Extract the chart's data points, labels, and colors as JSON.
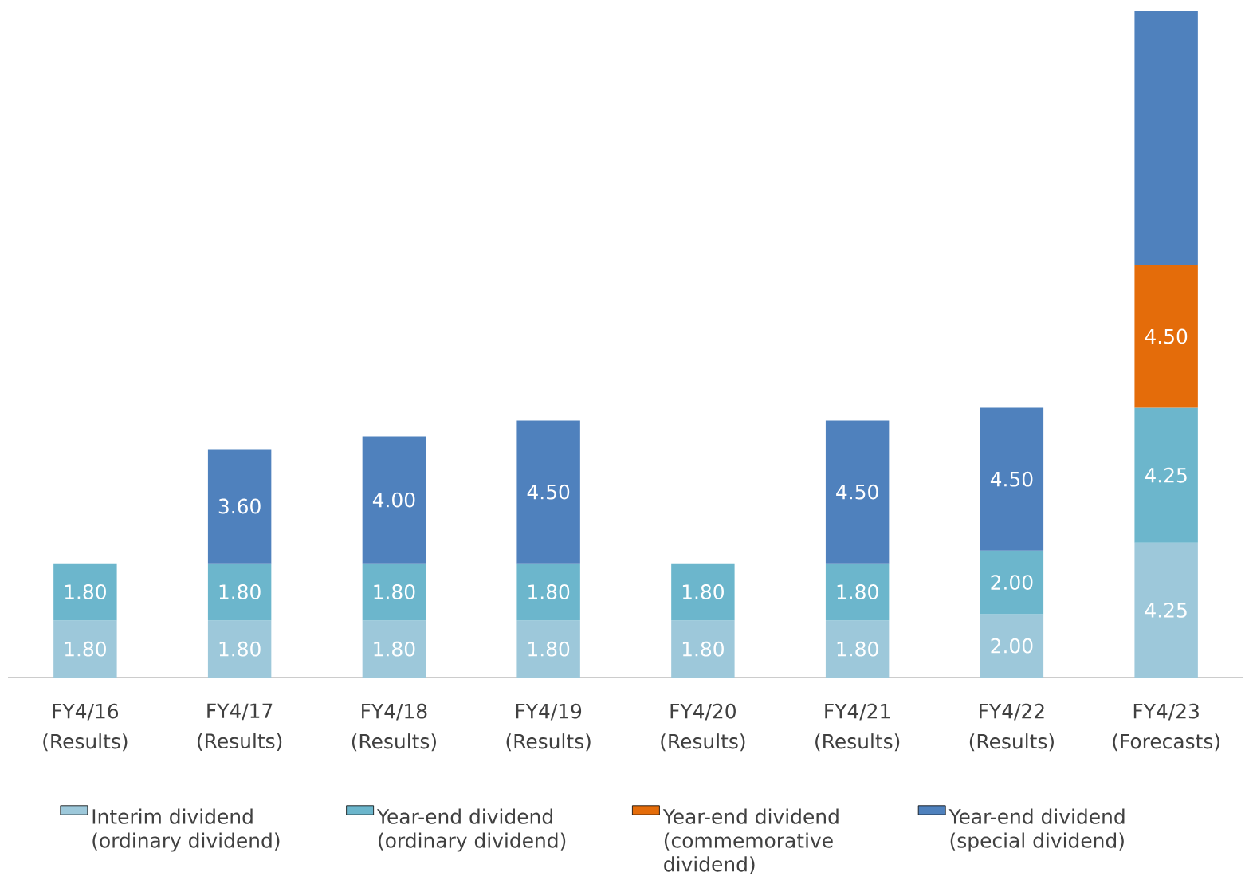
{
  "chart_data": {
    "type": "bar",
    "stacked": true,
    "legend": "bottom",
    "categories": [
      "FY4/16 (Results)",
      "FY4/17 (Results)",
      "FY4/18 (Results)",
      "FY4/19 (Results)",
      "FY4/20 (Results)",
      "FY4/21 (Results)",
      "FY4/22 (Results)",
      "FY4/23 (Forecasts)"
    ],
    "series": [
      {
        "name": "Interim dividend (ordinary dividend)",
        "color": "#9dc8da",
        "values": [
          1.8,
          1.8,
          1.8,
          1.8,
          1.8,
          1.8,
          2.0,
          4.25
        ],
        "value_labels": [
          "1.80",
          "1.80",
          "1.80",
          "1.80",
          "1.80",
          "1.80",
          "2.00",
          "4.25"
        ]
      },
      {
        "name": "Year-end dividend (ordinary dividend)",
        "color": "#6cb6cc",
        "values": [
          1.8,
          1.8,
          1.8,
          1.8,
          1.8,
          1.8,
          2.0,
          4.25
        ],
        "value_labels": [
          "1.80",
          "1.80",
          "1.80",
          "1.80",
          "1.80",
          "1.80",
          "2.00",
          "4.25"
        ]
      },
      {
        "name": "Year-end dividend (commemorative dividend)",
        "color": "#e46c0a",
        "values": [
          null,
          null,
          null,
          null,
          null,
          null,
          null,
          4.5
        ],
        "value_labels": [
          null,
          null,
          null,
          null,
          null,
          null,
          null,
          "4.50"
        ]
      },
      {
        "name": "Year-end dividend (special dividend)",
        "color": "#4f81bd",
        "values": [
          null,
          3.6,
          4.0,
          4.5,
          null,
          4.5,
          4.5,
          8.0
        ],
        "value_labels": [
          null,
          "3.60",
          "4.00",
          "4.50",
          null,
          "4.50",
          "4.50",
          null
        ]
      }
    ]
  }
}
